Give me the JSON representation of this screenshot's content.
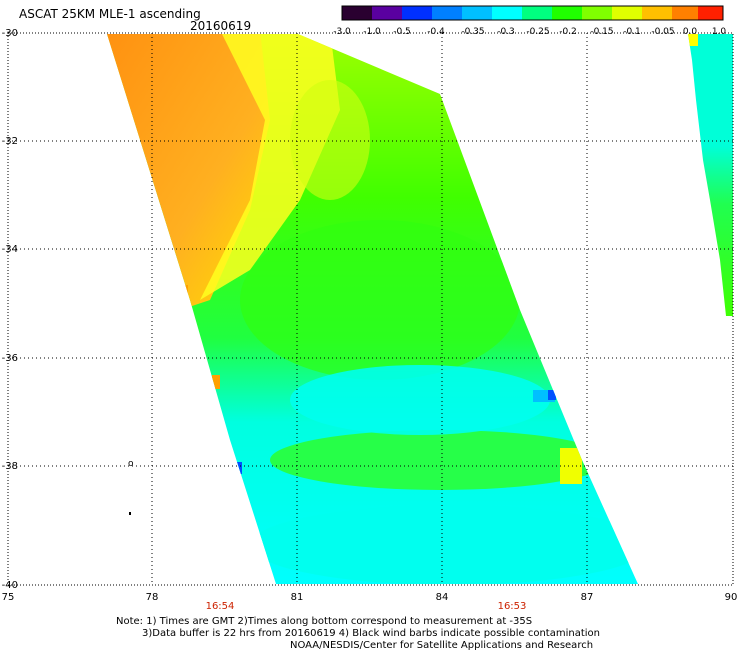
{
  "header": {
    "title": "ASCAT 25KM MLE-1 ascending",
    "date": "20160619"
  },
  "colorbar": {
    "labels": [
      "-3.0",
      "-1.0",
      "-0.5",
      "-0.4",
      "-0.35",
      "-0.3",
      "-0.25",
      "-0.2",
      "-0.15",
      "-0.1",
      "-0.05",
      "0.0",
      "1.0"
    ],
    "colors": [
      "#2a0030",
      "#5a00a0",
      "#0030ff",
      "#0080ff",
      "#00c0ff",
      "#00ffff",
      "#00ff80",
      "#20ff00",
      "#80ff00",
      "#e0ff00",
      "#ffc000",
      "#ff8000",
      "#ff2000"
    ]
  },
  "map": {
    "lat_ticks": [
      "-30",
      "-32",
      "-34",
      "-36",
      "-38",
      "-40"
    ],
    "lon_ticks": [
      "75",
      "78",
      "81",
      "84",
      "87",
      "90"
    ],
    "pass_times": [
      "16:54",
      "16:53"
    ],
    "field_colors": {
      "orange": "#ff9a10",
      "yellow": "#ffff00",
      "green": "#30ff00",
      "cyan": "#00ffee",
      "blue": "#0050ff"
    }
  },
  "notes": [
    "Note: 1) Times are GMT 2)Times along bottom correspond to measurement at -35S",
    "3)Data buffer is 22 hrs from 20160619 4) Black wind barbs indicate possible contamination",
    "NOAA/NESDIS/Center for Satellite Applications and Research"
  ]
}
